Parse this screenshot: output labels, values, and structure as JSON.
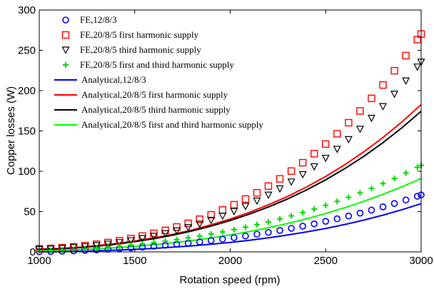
{
  "chart_data": {
    "type": "line",
    "xlabel": "Rotation speed (rpm)",
    "ylabel": "Copper losses (W)",
    "xlim": [
      1000,
      3000
    ],
    "ylim": [
      0,
      300
    ],
    "xticks": [
      "1000",
      "1500",
      "2000",
      "2500",
      "3000"
    ],
    "yticks": [
      "0",
      "50",
      "100",
      "150",
      "200",
      "250",
      "300"
    ],
    "grid": false,
    "legend_position": "top-left",
    "series": [
      {
        "name": "FE,12/8/3",
        "kind": "marker",
        "marker": "circle",
        "color": "#0000ff",
        "x": [
          1000,
          1060,
          1120,
          1180,
          1240,
          1300,
          1360,
          1420,
          1480,
          1540,
          1600,
          1660,
          1720,
          1780,
          1840,
          1900,
          1960,
          2020,
          2080,
          2140,
          2200,
          2260,
          2320,
          2380,
          2440,
          2500,
          2560,
          2620,
          2680,
          2740,
          2800,
          2860,
          2920,
          2980,
          3000
        ],
        "y": [
          0.2,
          0.4,
          0.8,
          1.2,
          1.8,
          2.5,
          3.2,
          4.0,
          4.9,
          5.9,
          7.0,
          8.2,
          9.5,
          10.9,
          12.4,
          14.1,
          15.8,
          17.7,
          19.7,
          21.9,
          24.2,
          26.6,
          29.2,
          31.9,
          34.8,
          37.9,
          41.1,
          44.5,
          48.1,
          51.8,
          55.8,
          60.0,
          64.4,
          69.0,
          70.6
        ]
      },
      {
        "name": "FE,20/8/5 first harmonic supply",
        "kind": "marker",
        "marker": "square",
        "color": "#ff0000",
        "x": [
          1000,
          1060,
          1120,
          1180,
          1240,
          1300,
          1360,
          1420,
          1480,
          1540,
          1600,
          1660,
          1720,
          1780,
          1840,
          1900,
          1960,
          2020,
          2080,
          2140,
          2200,
          2260,
          2320,
          2380,
          2440,
          2500,
          2560,
          2620,
          2680,
          2740,
          2800,
          2860,
          2920,
          2980,
          3000
        ],
        "y": [
          3.8,
          4.3,
          5.2,
          6.3,
          7.8,
          9.5,
          11.6,
          13.9,
          16.6,
          19.6,
          23.0,
          26.7,
          30.9,
          35.4,
          40.5,
          46.0,
          52.0,
          58.5,
          65.6,
          73.3,
          81.6,
          90.6,
          100.2,
          110.6,
          121.8,
          133.7,
          146.5,
          160.2,
          174.8,
          190.4,
          207.0,
          224.7,
          243.4,
          263.3,
          270.2
        ]
      },
      {
        "name": "FE,20/8/5 third harmonic supply",
        "kind": "marker",
        "marker": "triangle-down",
        "color": "#000000",
        "x": [
          1000,
          1060,
          1120,
          1180,
          1240,
          1300,
          1360,
          1420,
          1480,
          1540,
          1600,
          1660,
          1720,
          1780,
          1840,
          1900,
          1960,
          2020,
          2080,
          2140,
          2200,
          2260,
          2320,
          2380,
          2440,
          2500,
          2560,
          2620,
          2680,
          2740,
          2800,
          2860,
          2920,
          2980,
          3000
        ],
        "y": [
          3.2,
          3.6,
          4.4,
          5.4,
          6.6,
          8.1,
          9.8,
          11.8,
          14.1,
          16.7,
          19.6,
          22.8,
          26.3,
          30.3,
          34.6,
          39.4,
          44.6,
          50.3,
          56.6,
          63.3,
          70.6,
          78.4,
          86.9,
          96.0,
          105.8,
          116.3,
          127.5,
          139.5,
          152.3,
          165.9,
          180.4,
          195.8,
          212.2,
          229.5,
          235.5
        ]
      },
      {
        "name": "FE,20/8/5 first and third harmonic supply",
        "kind": "marker",
        "marker": "plus",
        "color": "#00dd00",
        "x": [
          1000,
          1060,
          1120,
          1180,
          1240,
          1300,
          1360,
          1420,
          1480,
          1540,
          1600,
          1660,
          1720,
          1780,
          1840,
          1900,
          1960,
          2020,
          2080,
          2140,
          2200,
          2260,
          2320,
          2380,
          2440,
          2500,
          2560,
          2620,
          2680,
          2740,
          2800,
          2860,
          2920,
          2980,
          3000
        ],
        "y": [
          1.5,
          1.8,
          2.3,
          3.0,
          3.8,
          4.8,
          5.9,
          7.1,
          8.5,
          10.0,
          11.6,
          13.4,
          15.4,
          17.5,
          19.7,
          22.2,
          24.8,
          27.6,
          30.6,
          33.8,
          37.2,
          40.8,
          44.7,
          48.8,
          53.1,
          57.7,
          62.6,
          67.7,
          73.1,
          78.8,
          84.8,
          91.2,
          97.9,
          104.9,
          107.3
        ]
      },
      {
        "name": "Analytical,12/8/3",
        "kind": "line",
        "color": "#0000ff",
        "x": [
          1000,
          1100,
          1200,
          1300,
          1400,
          1500,
          1600,
          1700,
          1800,
          1900,
          2000,
          2100,
          2200,
          2300,
          2400,
          2500,
          2600,
          2700,
          2800,
          2900,
          3000
        ],
        "y": [
          0.1,
          0.3,
          0.7,
          1.3,
          2.1,
          3.1,
          4.3,
          5.8,
          7.5,
          9.5,
          11.8,
          14.4,
          17.4,
          20.9,
          24.8,
          29.1,
          34.0,
          39.5,
          45.6,
          52.4,
          59.8
        ]
      },
      {
        "name": "Analytical,20/8/5 first harmonic supply",
        "kind": "line",
        "color": "#ff0000",
        "x": [
          1000,
          1100,
          1200,
          1300,
          1400,
          1500,
          1600,
          1700,
          1800,
          1900,
          2000,
          2100,
          2200,
          2300,
          2400,
          2500,
          2600,
          2700,
          2800,
          2900,
          3000
        ],
        "y": [
          3.3,
          4.1,
          5.6,
          7.6,
          10.2,
          13.4,
          17.3,
          21.9,
          27.3,
          33.6,
          40.8,
          49.0,
          58.3,
          68.8,
          80.5,
          93.6,
          108.1,
          124.2,
          141.9,
          161.4,
          182.7
        ]
      },
      {
        "name": "Analytical,20/8/5 third harmonic supply",
        "kind": "line",
        "color": "#000000",
        "x": [
          1000,
          1100,
          1200,
          1300,
          1400,
          1500,
          1600,
          1700,
          1800,
          1900,
          2000,
          2100,
          2200,
          2300,
          2400,
          2500,
          2600,
          2700,
          2800,
          2900,
          3000
        ],
        "y": [
          3.0,
          3.8,
          5.2,
          7.1,
          9.6,
          12.7,
          16.4,
          20.8,
          26.0,
          32.0,
          38.9,
          46.8,
          55.7,
          65.7,
          76.9,
          89.4,
          103.3,
          118.6,
          135.5,
          154.1,
          174.4
        ]
      },
      {
        "name": "Analytical,20/8/5 first and third harmonic supply",
        "kind": "line",
        "color": "#00ff00",
        "x": [
          1000,
          1100,
          1200,
          1300,
          1400,
          1500,
          1600,
          1700,
          1800,
          1900,
          2000,
          2100,
          2200,
          2300,
          2400,
          2500,
          2600,
          2700,
          2800,
          2900,
          3000
        ],
        "y": [
          1.5,
          1.9,
          2.7,
          3.8,
          5.2,
          6.9,
          8.9,
          11.3,
          14.1,
          17.3,
          21.0,
          25.2,
          29.9,
          35.2,
          41.1,
          47.6,
          54.8,
          62.7,
          71.4,
          80.8,
          91.1
        ]
      }
    ]
  }
}
